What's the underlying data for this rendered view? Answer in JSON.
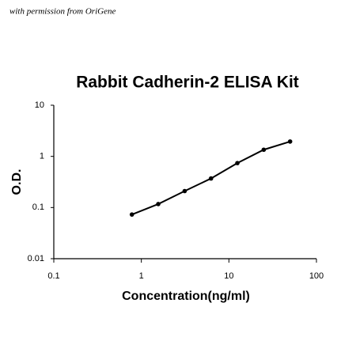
{
  "chart_data": {
    "type": "line",
    "annotation": "with permission from OriGene",
    "title": "Rabbit Cadherin-2 ELISA Kit",
    "x_label": "Concentration(ng/ml)",
    "y_label": "O.D.",
    "x": [
      0.78,
      1.56,
      3.125,
      6.25,
      12.5,
      25,
      50
    ],
    "series": [
      {
        "color": "#000000",
        "values": [
          0.073,
          0.117,
          0.21,
          0.37,
          0.74,
          1.35,
          1.95
        ]
      }
    ],
    "xlim": [
      0.1,
      100
    ],
    "xticks": [
      0.1,
      1,
      10,
      100
    ],
    "xscale": "log",
    "ylim": [
      0.01,
      10
    ],
    "yticks": [
      0.01,
      0.1,
      1,
      10
    ],
    "yscale": "log"
  }
}
